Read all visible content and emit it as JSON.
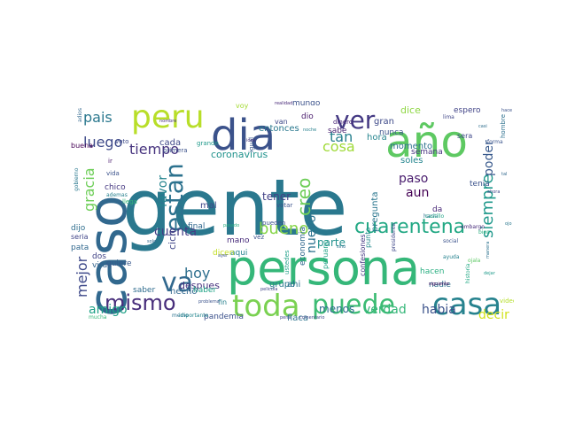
{
  "cloud": {
    "type": "word-cloud",
    "colormap": "viridis",
    "background": "#ffffff",
    "words": [
      {
        "text": "gente",
        "color": "#2a788e"
      },
      {
        "text": "persona",
        "color": "#35b779"
      },
      {
        "text": "caso",
        "color": "#31688e"
      },
      {
        "text": "dia",
        "color": "#3b528b"
      },
      {
        "text": "año",
        "color": "#5ec962"
      },
      {
        "text": "ver",
        "color": "#443983"
      },
      {
        "text": "peru",
        "color": "#b8de29"
      },
      {
        "text": "toda",
        "color": "#7ad151"
      },
      {
        "text": "puede",
        "color": "#3dbc74"
      },
      {
        "text": "casa",
        "color": "#26828e"
      },
      {
        "text": "va",
        "color": "#31688e"
      },
      {
        "text": "mismo",
        "color": "#472d7b"
      },
      {
        "text": "estan",
        "color": "#2c728e"
      },
      {
        "text": "cuarentena",
        "color": "#22a884"
      },
      {
        "text": "creo",
        "color": "#6ece58"
      },
      {
        "text": "siempre",
        "color": "#1f988b"
      },
      {
        "text": "bueno",
        "color": "#86d549"
      },
      {
        "text": "tiempo",
        "color": "#46337e"
      },
      {
        "text": "pais",
        "color": "#2a788e"
      },
      {
        "text": "luego",
        "color": "#3e4a89"
      },
      {
        "text": "gracia",
        "color": "#6ece58"
      },
      {
        "text": "mejor",
        "color": "#3e4989"
      },
      {
        "text": "cosa",
        "color": "#a0da39"
      },
      {
        "text": "tan",
        "color": "#27808e"
      },
      {
        "text": "poder",
        "color": "#38598c"
      },
      {
        "text": "hoy",
        "color": "#2e6f8e"
      },
      {
        "text": "cuenta",
        "color": "#433e85"
      },
      {
        "text": "amigo",
        "color": "#1fa187"
      },
      {
        "text": "favor",
        "color": "#25848e"
      },
      {
        "text": "nuevo",
        "color": "#2c728e"
      },
      {
        "text": "paso",
        "color": "#481b6d"
      },
      {
        "text": "aun",
        "color": "#440154"
      },
      {
        "text": "habia",
        "color": "#3b528b"
      },
      {
        "text": "verdad",
        "color": "#35b779"
      },
      {
        "text": "decir",
        "color": "#d2e21b"
      },
      {
        "text": "menos",
        "color": "#2e6e8e"
      },
      {
        "text": "parte",
        "color": "#21918c"
      },
      {
        "text": "tener",
        "color": "#424186"
      },
      {
        "text": "ciclo",
        "color": "#404688"
      },
      {
        "text": "despues",
        "color": "#46307e"
      },
      {
        "text": "hecho",
        "color": "#31688e"
      },
      {
        "text": "entonces",
        "color": "#2a788e"
      },
      {
        "text": "coronavirus",
        "color": "#20928c"
      },
      {
        "text": "mundo",
        "color": "#3b528b"
      },
      {
        "text": "dice",
        "color": "#8fd744"
      },
      {
        "text": "espero",
        "color": "#414487"
      },
      {
        "text": "hora",
        "color": "#25848e"
      },
      {
        "text": "gran",
        "color": "#3e4a89"
      },
      {
        "text": "momento",
        "color": "#2d708e"
      },
      {
        "text": "sabe",
        "color": "#481f70"
      },
      {
        "text": "nunca",
        "color": "#3b528b"
      },
      {
        "text": "semana",
        "color": "#46327e"
      },
      {
        "text": "pregunta",
        "color": "#2a768e"
      },
      {
        "text": "soles",
        "color": "#25858e"
      },
      {
        "text": "economia",
        "color": "#31688e"
      },
      {
        "text": "peruano",
        "color": "#20a386"
      },
      {
        "text": "confesiones",
        "color": "#453882"
      },
      {
        "text": "punto",
        "color": "#238a8d"
      },
      {
        "text": "tenia",
        "color": "#3b528b"
      },
      {
        "text": "sera",
        "color": "#3f4889"
      },
      {
        "text": "da",
        "color": "#482878"
      },
      {
        "text": "hacen",
        "color": "#28ae80"
      },
      {
        "text": "nadie",
        "color": "#2d718e"
      },
      {
        "text": "grupo",
        "color": "#2a788e"
      },
      {
        "text": "flaca",
        "color": "#2c738e"
      },
      {
        "text": "ahi",
        "color": "#2c728e"
      },
      {
        "text": "pandemia",
        "color": "#3b518b"
      },
      {
        "text": "chico",
        "color": "#453781"
      },
      {
        "text": "dos",
        "color": "#414487"
      },
      {
        "text": "virus",
        "color": "#33638d"
      },
      {
        "text": "quiere",
        "color": "#38598c"
      },
      {
        "text": "saber",
        "color": "#2f6c8e"
      },
      {
        "text": "dijo",
        "color": "#2e6e8e"
      },
      {
        "text": "seria",
        "color": "#404588"
      },
      {
        "text": "pata",
        "color": "#31688e"
      },
      {
        "text": "buena",
        "color": "#440154"
      },
      {
        "text": "cada",
        "color": "#3f4788"
      },
      {
        "text": "mal",
        "color": "#3f4788"
      },
      {
        "text": "final",
        "color": "#31688e"
      },
      {
        "text": "mano",
        "color": "#472a7a"
      },
      {
        "text": "aqui",
        "color": "#26828e"
      },
      {
        "text": "fin",
        "color": "#27808e"
      },
      {
        "text": "haber",
        "color": "#20a386"
      },
      {
        "text": "dicen",
        "color": "#c2df23"
      },
      {
        "text": "primera",
        "color": "#3b528b"
      },
      {
        "text": "grande",
        "color": "#1f998a"
      },
      {
        "text": "voy",
        "color": "#a5db36"
      },
      {
        "text": "igual",
        "color": "#39568c"
      },
      {
        "text": "van",
        "color": "#3e4989"
      },
      {
        "text": "dio",
        "color": "#481a6c"
      },
      {
        "text": "dinero",
        "color": "#482576"
      },
      {
        "text": "votar",
        "color": "#3a548c"
      },
      {
        "text": "pueden",
        "color": "#3b528b"
      },
      {
        "text": "ustedes",
        "color": "#1fa088"
      },
      {
        "text": "vez",
        "color": "#3b528b"
      },
      {
        "text": "medio",
        "color": "#2c728e"
      },
      {
        "text": "importante",
        "color": "#24868e"
      },
      {
        "text": "llega",
        "color": "#35b779"
      },
      {
        "text": "vida",
        "color": "#3b528b"
      },
      {
        "text": "ir",
        "color": "#481a6c"
      },
      {
        "text": "voto",
        "color": "#3e4a89"
      },
      {
        "text": "gobierno",
        "color": "#2a788e"
      },
      {
        "text": "hacia",
        "color": "#2e6e8e"
      },
      {
        "text": "ademas",
        "color": "#27808e"
      },
      {
        "text": "adios",
        "color": "#31688e"
      },
      {
        "text": "lima",
        "color": "#404688"
      },
      {
        "text": "hombre",
        "color": "#2d708e"
      },
      {
        "text": "mucha",
        "color": "#35b779"
      },
      {
        "text": "video",
        "color": "#b5de2b"
      },
      {
        "text": "forma",
        "color": "#3a548c"
      },
      {
        "text": "bien",
        "color": "#29af7f"
      },
      {
        "text": "ojala",
        "color": "#5cc863"
      },
      {
        "text": "embargo",
        "color": "#472a7a"
      },
      {
        "text": "social",
        "color": "#3b528b"
      },
      {
        "text": "ayuda",
        "color": "#26828e"
      },
      {
        "text": "castillo",
        "color": "#20a386"
      },
      {
        "text": "presidente",
        "color": "#3f4889"
      },
      {
        "text": "realidad",
        "color": "#482878"
      },
      {
        "text": "sino",
        "color": "#2c728e"
      },
      {
        "text": "solo",
        "color": "#31688e"
      },
      {
        "text": "pasado",
        "color": "#27ad81"
      },
      {
        "text": "ayer",
        "color": "#3b528b"
      },
      {
        "text": "dejar",
        "color": "#1f9a8a"
      },
      {
        "text": "siguiente",
        "color": "#46085c"
      },
      {
        "text": "comentario",
        "color": "#3e4989"
      },
      {
        "text": "historia",
        "color": "#22a884"
      },
      {
        "text": "manera",
        "color": "#2c728e"
      },
      {
        "text": "pelicula",
        "color": "#414487"
      },
      {
        "text": "problema",
        "color": "#3b528b"
      },
      {
        "text": "idea",
        "color": "#46337e"
      },
      {
        "text": "noche",
        "color": "#27808e"
      },
      {
        "text": "casi",
        "color": "#2e6e8e"
      },
      {
        "text": "hace",
        "color": "#3b528b"
      },
      {
        "text": "ahora",
        "color": "#404688"
      },
      {
        "text": "tal",
        "color": "#31688e"
      },
      {
        "text": "ojo",
        "color": "#2a788e"
      },
      {
        "text": "pena",
        "color": "#3f4788"
      },
      {
        "text": "nombre",
        "color": "#46307e"
      }
    ]
  }
}
